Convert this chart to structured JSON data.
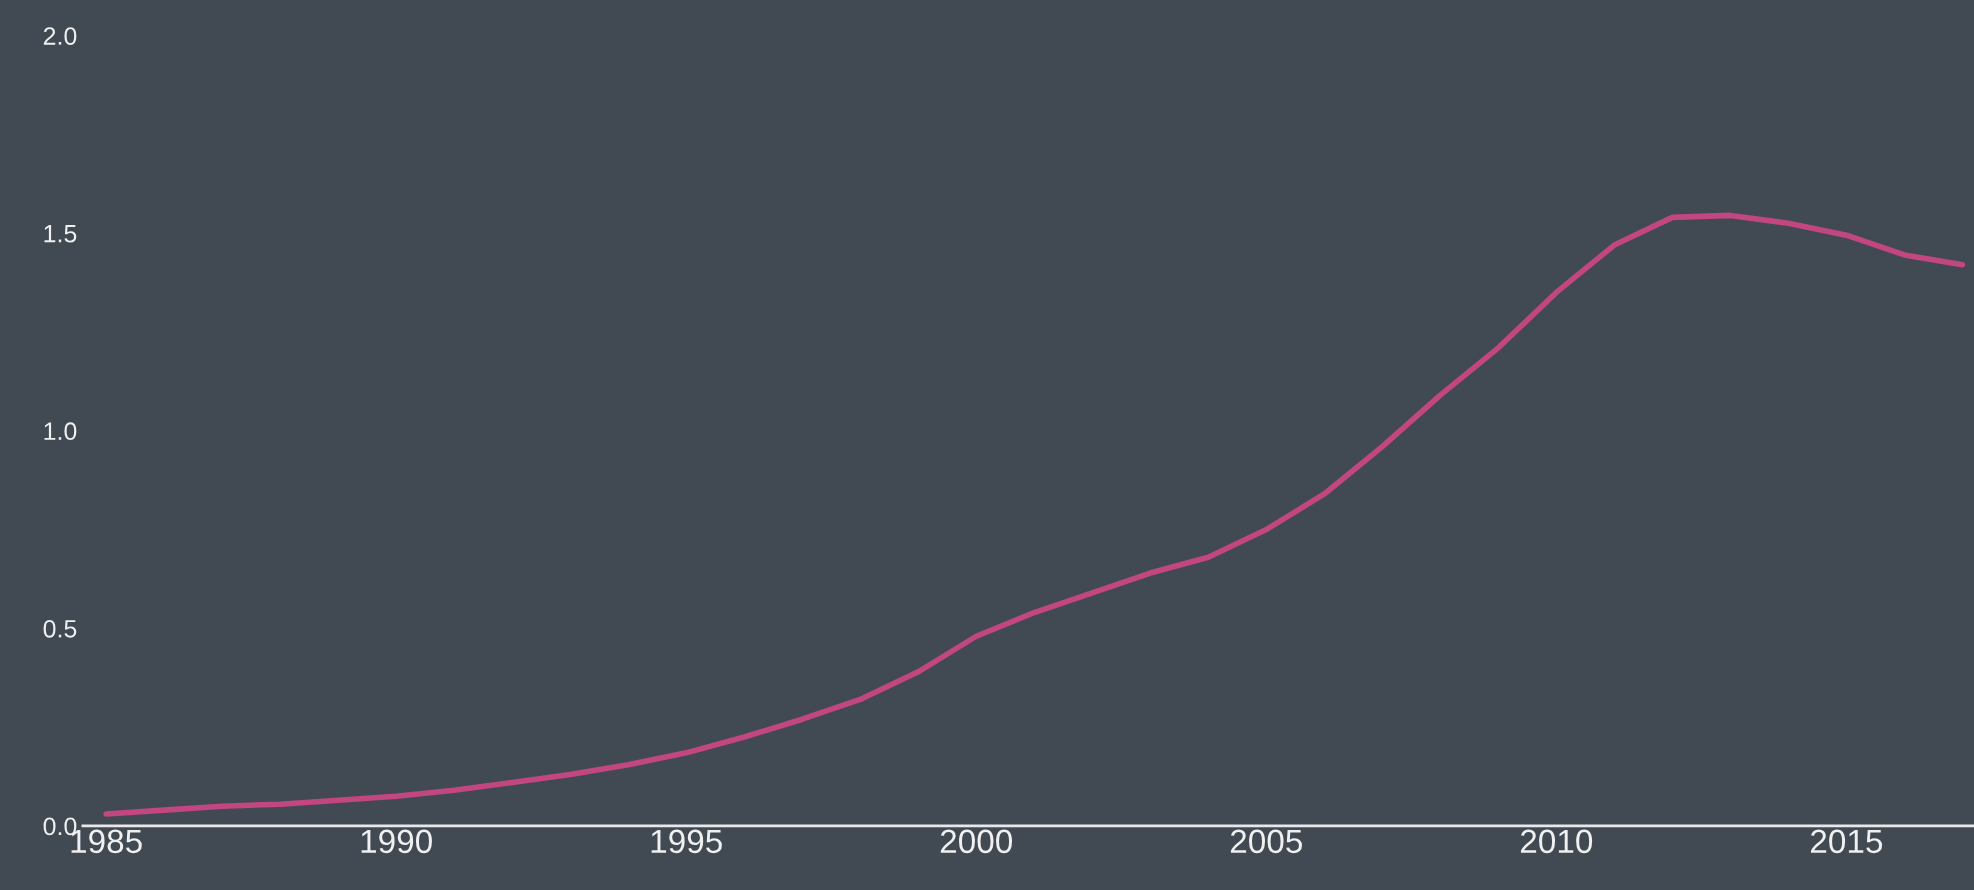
{
  "chart_data": {
    "type": "line",
    "x": [
      1985,
      1986,
      1987,
      1988,
      1989,
      1990,
      1991,
      1992,
      1993,
      1994,
      1995,
      1996,
      1997,
      1998,
      1999,
      2000,
      2001,
      2002,
      2003,
      2004,
      2005,
      2006,
      2007,
      2008,
      2009,
      2010,
      2011,
      2012,
      2013,
      2014,
      2015,
      2016,
      2017
    ],
    "series": [
      {
        "color": "#c2467f",
        "values": [
          0.03,
          0.04,
          0.05,
          0.055,
          0.065,
          0.075,
          0.09,
          0.11,
          0.13,
          0.155,
          0.185,
          0.225,
          0.27,
          0.32,
          0.39,
          0.48,
          0.54,
          0.59,
          0.64,
          0.68,
          0.75,
          0.84,
          0.96,
          1.09,
          1.21,
          1.35,
          1.47,
          1.54,
          1.545,
          1.525,
          1.495,
          1.445,
          1.42
        ]
      }
    ],
    "xlim": [
      1984.6,
      2017.2
    ],
    "xticks": [
      1985,
      1990,
      1995,
      2000,
      2005,
      2010,
      2015
    ],
    "ylim": [
      0,
      2.0
    ],
    "yticks": [
      {
        "value": 0,
        "label": "0.0"
      },
      {
        "value": 0.5,
        "label": "0.5"
      },
      {
        "value": 1.0,
        "label": "1.0"
      },
      {
        "value": 1.5,
        "label": "1.5"
      },
      {
        "value": 2.0,
        "label": "2.0"
      }
    ],
    "grid": false,
    "legend": false,
    "marker": "none",
    "line_style": "solid"
  }
}
